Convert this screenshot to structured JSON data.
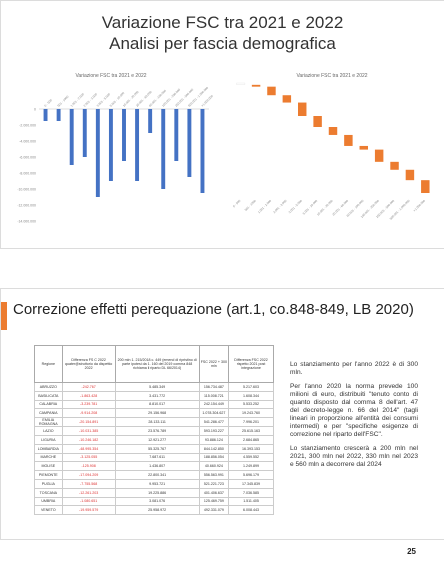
{
  "slide1": {
    "title_line1": "Variazione FSC tra 2021 e 2022",
    "title_line2": "Analisi per fascia demografica"
  },
  "chart_data": [
    {
      "type": "bar",
      "title": "Variazione FSC tra 2021 e 2022",
      "categories": [
        "0 - 500",
        "501 - 1000",
        "1.001 - 2.000",
        "2.001 - 3.000",
        "3.001 - 5.000",
        "5.001 - 10.000",
        "10.001 - 20.000",
        "20.001 - 60.000",
        "60.001 - 100.000",
        "100.001 - 250.000",
        "250.001 - 500.000",
        "500.001 - 1.000.000",
        ">1.000.000"
      ],
      "values": [
        -1500000,
        -1500000,
        -7000000,
        -6000000,
        -11000000,
        -9000000,
        -6500000,
        -9000000,
        -3000000,
        -10000000,
        -6500000,
        -8500000,
        -10500000
      ],
      "yticks": [
        "0",
        "-2.000.000",
        "-4.000.000",
        "-6.000.000",
        "-8.000.000",
        "-10.000.000",
        "-12.000.000",
        "-14.000.000"
      ],
      "ylim": [
        -14000000,
        0
      ]
    },
    {
      "type": "waterfall",
      "title": "Variazione FSC tra 2021 e 2022",
      "categories": [
        "0 - 500",
        "501 - 1000",
        "1.001 - 2.000",
        "2.001 - 3.000",
        "3.001 - 5.000",
        "5.001 - 10.000",
        "10.001 - 20.000",
        "20.001 - 60.000",
        "60.001 - 100.000",
        "100.001 - 250.000",
        "250.001 - 500.000",
        "500.001 - 1.000.000",
        ">1.000.000"
      ],
      "values": [
        -1500000,
        -1500000,
        -7000000,
        -6000000,
        -11000000,
        -9000000,
        -6500000,
        -9000000,
        -3000000,
        -10000000,
        -6500000,
        -8500000,
        -10500000
      ],
      "colors": {
        "bar": "#ec7c30",
        "first": "#ffffff"
      }
    }
  ],
  "slide2": {
    "title": "Correzione effetti perequazione (art.1, co.848-849, LB 2020)",
    "table": {
      "headers": [
        "Regione",
        "Differenza FS C 2022 quater@struttorio da dispettio 2022",
        "200 mln 1. 215/2018 c. 449 (emend di ripristino di parte ipotesi da 1. 160 del 2019 comma 848 richiama il riparto DL 66/2014)",
        "FSC 2022 + 300 mln",
        "Differenza FSC 2022 rispetto 2021 post integrazione"
      ],
      "rows": [
        [
          "ABRUZZO",
          "-242.767",
          "5.485.349",
          "156.734.487",
          "5.217.603"
        ],
        [
          "BASILICATA",
          "-1.863.428",
          "3.431.772",
          "115.008.721",
          "1.608.344"
        ],
        [
          "CALABRIA",
          "-3.239.781",
          "8.810.017",
          "242.154.449",
          "5.533.252"
        ],
        [
          "CAMPANIA",
          "-9.914.208",
          "29.156.968",
          "1.078.304.627",
          "19.243.760"
        ],
        [
          "EMILIA ROMAGNA",
          "-20.154.891",
          "28.133.111",
          "541.286.477",
          "7.996.201"
        ],
        [
          "LAZIO",
          "-10.031.385",
          "23.576.789",
          "593.193.227",
          "25.615.163"
        ],
        [
          "LIGURIA",
          "-10.246.182",
          "12.921.277",
          "93.886.124",
          "2.684.865"
        ],
        [
          "LOMBARDIA",
          "-48.995.354",
          "55.325.767",
          "844.142.850",
          "16.393.153"
        ],
        [
          "MARCHE",
          "-3.125.055",
          "7.687.611",
          "188.856.054",
          "4.559.552"
        ],
        [
          "MOLISE",
          "-125.908",
          "1.436.807",
          "40.660.924",
          "1.249.899"
        ],
        [
          "PIEMONTE",
          "-17.094.209",
          "22.800.341",
          "556.563.991",
          "5.696.179"
        ],
        [
          "PUGLIA",
          "-7.755.568",
          "9.953.721",
          "521.221.723",
          "17.345.839"
        ],
        [
          "TOSCANA",
          "-12.261.203",
          "19.225.886",
          "401.406.637",
          "7.036.585"
        ],
        [
          "UMBRIA",
          "-1.080.651",
          "3.081.076",
          "125.469.759",
          "1.511.405"
        ],
        [
          "VENETO",
          "-19.959.579",
          "25.958.972",
          "492.331.079",
          "6.008.443"
        ]
      ]
    },
    "paragraphs": [
      "Lo stanziamento per l'anno 2022 è di 300 mln.",
      "Per l'anno 2020 la norma prevede 100 milioni di euro, distribuiti \"tenuto conto di quanto disposto dal comma 8 dell'art. 47 del decreto-legge n. 66 del 2014\" (tagli lineari in proporzione all'entità dei consumi intermedi) e per \"specifiche esigenze di correzione nel riparto dell'FSC\".",
      "Lo stanziamento crescerà a 200 mln nel 2021, 300 mln nel 2022, 330 mln nel 2023 e 560 mln a decorrere dal 2024"
    ]
  },
  "page_number": "25"
}
